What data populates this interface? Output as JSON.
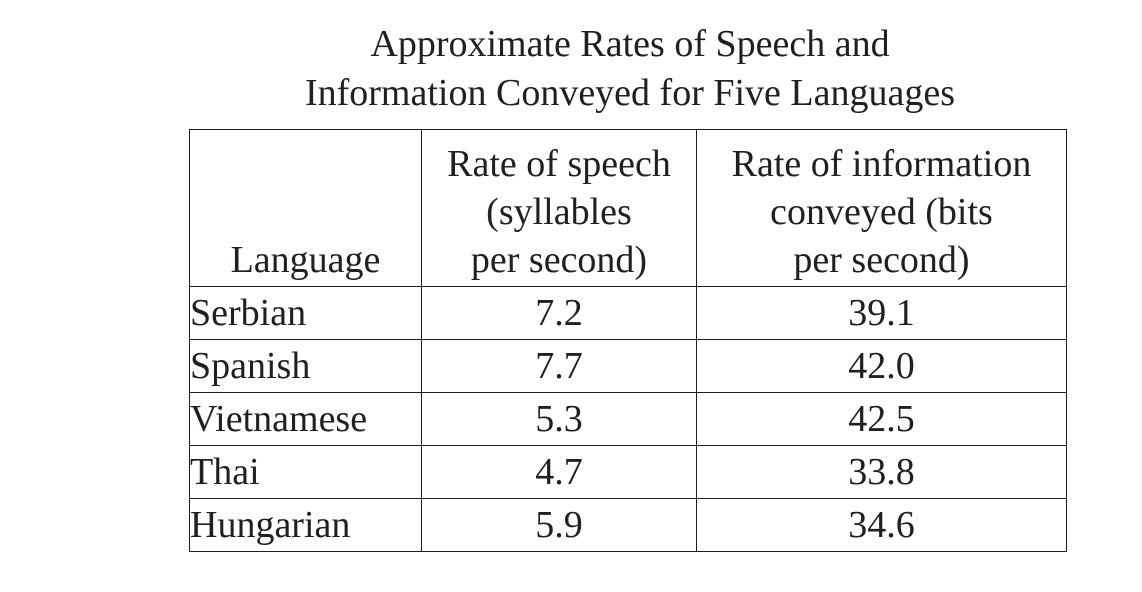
{
  "chart_data": {
    "type": "table",
    "title_lines": [
      "Approximate Rates of Speech and",
      "Information Conveyed for Five Languages"
    ],
    "columns": [
      {
        "key": "language",
        "lines": [
          "Language"
        ]
      },
      {
        "key": "speech_rate",
        "lines": [
          "Rate of speech",
          "(syllables",
          "per second)"
        ]
      },
      {
        "key": "info_rate",
        "lines": [
          "Rate of information",
          "conveyed (bits",
          "per second)"
        ]
      }
    ],
    "rows": [
      {
        "language": "Serbian",
        "speech_rate": "7.2",
        "info_rate": "39.1"
      },
      {
        "language": "Spanish",
        "speech_rate": "7.7",
        "info_rate": "42.0"
      },
      {
        "language": "Vietnamese",
        "speech_rate": "5.3",
        "info_rate": "42.5"
      },
      {
        "language": "Thai",
        "speech_rate": "4.7",
        "info_rate": "33.8"
      },
      {
        "language": "Hungarian",
        "speech_rate": "5.9",
        "info_rate": "34.6"
      }
    ]
  }
}
